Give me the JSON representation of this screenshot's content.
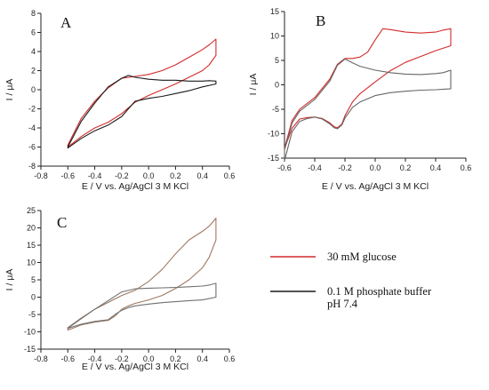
{
  "chart_data": [
    {
      "type": "line",
      "panel": "A",
      "xlabel": "E / V vs. Ag/AgCl 3 M KCl",
      "ylabel": "I / μA",
      "xlim": [
        -0.8,
        0.6
      ],
      "ylim": [
        -8,
        8
      ],
      "xticks": [
        -0.8,
        -0.6,
        -0.4,
        -0.2,
        0.0,
        0.2,
        0.4,
        0.6
      ],
      "yticks": [
        -8,
        -6,
        -4,
        -2,
        0,
        2,
        4,
        6,
        8
      ],
      "series": [
        {
          "color": "#d42a2a",
          "x": [
            -0.6,
            -0.5,
            -0.4,
            -0.3,
            -0.2,
            -0.15,
            -0.1,
            0.0,
            0.1,
            0.2,
            0.3,
            0.4,
            0.45,
            0.5,
            0.5,
            0.45,
            0.4,
            0.3,
            0.2,
            0.1,
            0.0,
            -0.1,
            -0.2,
            -0.3,
            -0.4,
            -0.5,
            -0.6
          ],
          "y": [
            -6.0,
            -4.9,
            -4.0,
            -3.4,
            -2.5,
            -1.9,
            -1.3,
            -0.6,
            0.0,
            0.6,
            1.3,
            2.0,
            2.6,
            3.6,
            5.3,
            4.7,
            4.2,
            3.4,
            2.6,
            2.0,
            1.6,
            1.4,
            1.2,
            0.2,
            -1.2,
            -3.0,
            -5.8
          ]
        },
        {
          "color": "#1a1a1a",
          "x": [
            -0.6,
            -0.5,
            -0.4,
            -0.3,
            -0.2,
            -0.15,
            -0.1,
            0.0,
            0.1,
            0.2,
            0.3,
            0.4,
            0.5,
            0.5,
            0.45,
            0.4,
            0.3,
            0.2,
            0.1,
            0.0,
            -0.1,
            -0.15,
            -0.2,
            -0.3,
            -0.4,
            -0.5,
            -0.6
          ],
          "y": [
            -6.1,
            -5.1,
            -4.3,
            -3.7,
            -2.8,
            -2.0,
            -1.2,
            -0.9,
            -0.7,
            -0.4,
            -0.1,
            0.3,
            0.6,
            0.9,
            0.95,
            0.9,
            0.9,
            1.0,
            1.0,
            1.1,
            1.3,
            1.5,
            1.2,
            0.3,
            -1.4,
            -3.3,
            -6.0
          ]
        }
      ]
    },
    {
      "type": "line",
      "panel": "B",
      "xlabel": "E / V vs. Ag/AgCl 3 M KCl",
      "ylabel": "I / μA",
      "xlim": [
        -0.6,
        0.6
      ],
      "ylim": [
        -15,
        15
      ],
      "xticks": [
        -0.6,
        -0.4,
        -0.2,
        0.0,
        0.2,
        0.4,
        0.6
      ],
      "yticks": [
        -15,
        -10,
        -5,
        0,
        5,
        10,
        15
      ],
      "series": [
        {
          "color": "#d42a2a",
          "x": [
            -0.6,
            -0.55,
            -0.5,
            -0.45,
            -0.4,
            -0.35,
            -0.3,
            -0.27,
            -0.25,
            -0.22,
            -0.2,
            -0.15,
            -0.1,
            0.0,
            0.1,
            0.2,
            0.3,
            0.4,
            0.5,
            0.5,
            0.45,
            0.4,
            0.3,
            0.2,
            0.1,
            0.05,
            0.0,
            -0.05,
            -0.1,
            -0.15,
            -0.2,
            -0.25,
            -0.3,
            -0.4,
            -0.5,
            -0.55,
            -0.6
          ],
          "y": [
            -13.0,
            -8.9,
            -7.0,
            -6.7,
            -6.6,
            -6.9,
            -7.8,
            -8.6,
            -8.8,
            -8.0,
            -6.3,
            -3.5,
            -1.8,
            0.6,
            2.9,
            4.6,
            5.8,
            7.0,
            8.0,
            11.5,
            11.2,
            10.8,
            10.6,
            10.8,
            11.3,
            11.5,
            9.2,
            6.7,
            5.7,
            5.4,
            5.4,
            4.2,
            1.2,
            -2.6,
            -5.0,
            -7.3,
            -13.0
          ]
        },
        {
          "color": "#666666",
          "x": [
            -0.6,
            -0.55,
            -0.5,
            -0.45,
            -0.4,
            -0.35,
            -0.3,
            -0.27,
            -0.25,
            -0.22,
            -0.2,
            -0.15,
            -0.1,
            0.0,
            0.1,
            0.2,
            0.3,
            0.4,
            0.5,
            0.5,
            0.45,
            0.4,
            0.3,
            0.2,
            0.1,
            0.0,
            -0.1,
            -0.15,
            -0.2,
            -0.25,
            -0.3,
            -0.4,
            -0.5,
            -0.55,
            -0.6
          ],
          "y": [
            -15.5,
            -9.6,
            -7.5,
            -6.9,
            -6.6,
            -7.0,
            -8.0,
            -8.8,
            -9.0,
            -8.2,
            -6.8,
            -4.6,
            -3.5,
            -2.2,
            -1.6,
            -1.3,
            -1.1,
            -1.0,
            -0.8,
            3.0,
            2.5,
            2.3,
            2.1,
            2.2,
            2.5,
            3.0,
            3.8,
            4.5,
            5.3,
            4.0,
            0.8,
            -3.0,
            -5.4,
            -7.8,
            -13.3
          ]
        }
      ]
    },
    {
      "type": "line",
      "panel": "C",
      "xlabel": "E / V vs. Ag/AgCl 3 M KCl",
      "ylabel": "I / μA",
      "xlim": [
        -0.8,
        0.6
      ],
      "ylim": [
        -15,
        25
      ],
      "xticks": [
        -0.8,
        -0.6,
        -0.4,
        -0.2,
        0.0,
        0.2,
        0.4,
        0.6
      ],
      "yticks": [
        -15,
        -10,
        -5,
        0,
        5,
        10,
        15,
        20,
        25
      ],
      "series": [
        {
          "color": "#a07860",
          "x": [
            -0.6,
            -0.5,
            -0.4,
            -0.3,
            -0.25,
            -0.2,
            -0.15,
            -0.1,
            0.0,
            0.1,
            0.2,
            0.3,
            0.4,
            0.45,
            0.5,
            0.5,
            0.45,
            0.4,
            0.3,
            0.2,
            0.1,
            0.0,
            -0.1,
            -0.2,
            -0.3,
            -0.4,
            -0.5,
            -0.6
          ],
          "y": [
            -9.5,
            -8.0,
            -7.2,
            -6.7,
            -5.5,
            -3.5,
            -2.5,
            -1.8,
            -0.8,
            0.5,
            2.5,
            5.0,
            8.5,
            11.5,
            16.5,
            22.8,
            20.5,
            19.0,
            16.5,
            12.5,
            8.0,
            4.5,
            2.0,
            0.5,
            -1.5,
            -3.5,
            -6.0,
            -8.8
          ]
        },
        {
          "color": "#707070",
          "x": [
            -0.6,
            -0.5,
            -0.4,
            -0.3,
            -0.25,
            -0.2,
            -0.15,
            -0.1,
            0.0,
            0.1,
            0.2,
            0.3,
            0.4,
            0.5,
            0.5,
            0.45,
            0.4,
            0.3,
            0.2,
            0.1,
            0.0,
            -0.1,
            -0.2,
            -0.3,
            -0.4,
            -0.5,
            -0.6
          ],
          "y": [
            -9.0,
            -7.8,
            -7.0,
            -6.5,
            -5.0,
            -3.8,
            -3.0,
            -2.5,
            -2.0,
            -1.6,
            -1.3,
            -1.0,
            -0.8,
            0.0,
            4.0,
            3.5,
            3.2,
            3.0,
            2.8,
            2.7,
            2.6,
            2.4,
            1.5,
            -1.0,
            -3.5,
            -6.2,
            -9.0
          ]
        }
      ]
    }
  ],
  "panels": {
    "A": {
      "letter": "A",
      "xlabel": "E / V vs. Ag/AgCl 3 M KCl",
      "ylabel": "I / μA"
    },
    "B": {
      "letter": "B",
      "xlabel": "E / V vs. Ag/AgCl 3 M KCl",
      "ylabel": "I / μA"
    },
    "C": {
      "letter": "C",
      "xlabel": "E / V vs. Ag/AgCl 3 M KCl",
      "ylabel": "I / μA"
    }
  },
  "legend": {
    "items": [
      {
        "label": "30 mM glucose",
        "color": "#d42a2a"
      },
      {
        "label": "0.1 M phosphate buffer",
        "label2": "pH 7.4",
        "color": "#1a1a1a"
      }
    ]
  }
}
